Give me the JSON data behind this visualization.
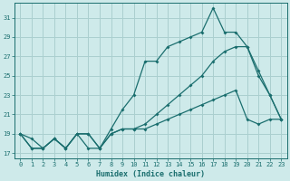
{
  "xlabel": "Humidex (Indice chaleur)",
  "background_color": "#ceeaea",
  "line_color": "#1a6e6e",
  "grid_color": "#aacfcf",
  "xlim": [
    -0.5,
    23.5
  ],
  "ylim": [
    16.5,
    32.5
  ],
  "xticks": [
    0,
    1,
    2,
    3,
    4,
    5,
    6,
    7,
    8,
    9,
    10,
    11,
    12,
    13,
    14,
    15,
    16,
    17,
    18,
    19,
    20,
    21,
    22,
    23
  ],
  "yticks": [
    17,
    19,
    21,
    23,
    25,
    27,
    29,
    31
  ],
  "line1_x": [
    0,
    1,
    2,
    3,
    4,
    5,
    6,
    7,
    8,
    9,
    10,
    11,
    12,
    13,
    14,
    15,
    16,
    17,
    18,
    19,
    20,
    21,
    22,
    23
  ],
  "line1_y": [
    19,
    17.5,
    17.5,
    18.5,
    17.5,
    19,
    17.5,
    17.5,
    19.5,
    21.5,
    23,
    26.5,
    26.5,
    28,
    28.5,
    29,
    29.5,
    32,
    29.5,
    29.5,
    28,
    25,
    23,
    20.5
  ],
  "line2_x": [
    0,
    1,
    2,
    3,
    4,
    5,
    6,
    7,
    8,
    9,
    10,
    11,
    12,
    13,
    14,
    15,
    16,
    17,
    18,
    19,
    20,
    21,
    22,
    23
  ],
  "line2_y": [
    19,
    17.5,
    17.5,
    18.5,
    17.5,
    19,
    19,
    17.5,
    19,
    19.5,
    19.5,
    19.5,
    20,
    20.5,
    21,
    21.5,
    22,
    22.5,
    23,
    23.5,
    20.5,
    20,
    20.5,
    20.5
  ],
  "line3_x": [
    0,
    1,
    2,
    3,
    4,
    5,
    6,
    7,
    8,
    9,
    10,
    11,
    12,
    13,
    14,
    15,
    16,
    17,
    18,
    19,
    20,
    21,
    22,
    23
  ],
  "line3_y": [
    19,
    18.5,
    17.5,
    18.5,
    17.5,
    19,
    19,
    17.5,
    19,
    19.5,
    19.5,
    20,
    21,
    22,
    23,
    24,
    25,
    26.5,
    27.5,
    28,
    28,
    25.5,
    23,
    20.5
  ]
}
